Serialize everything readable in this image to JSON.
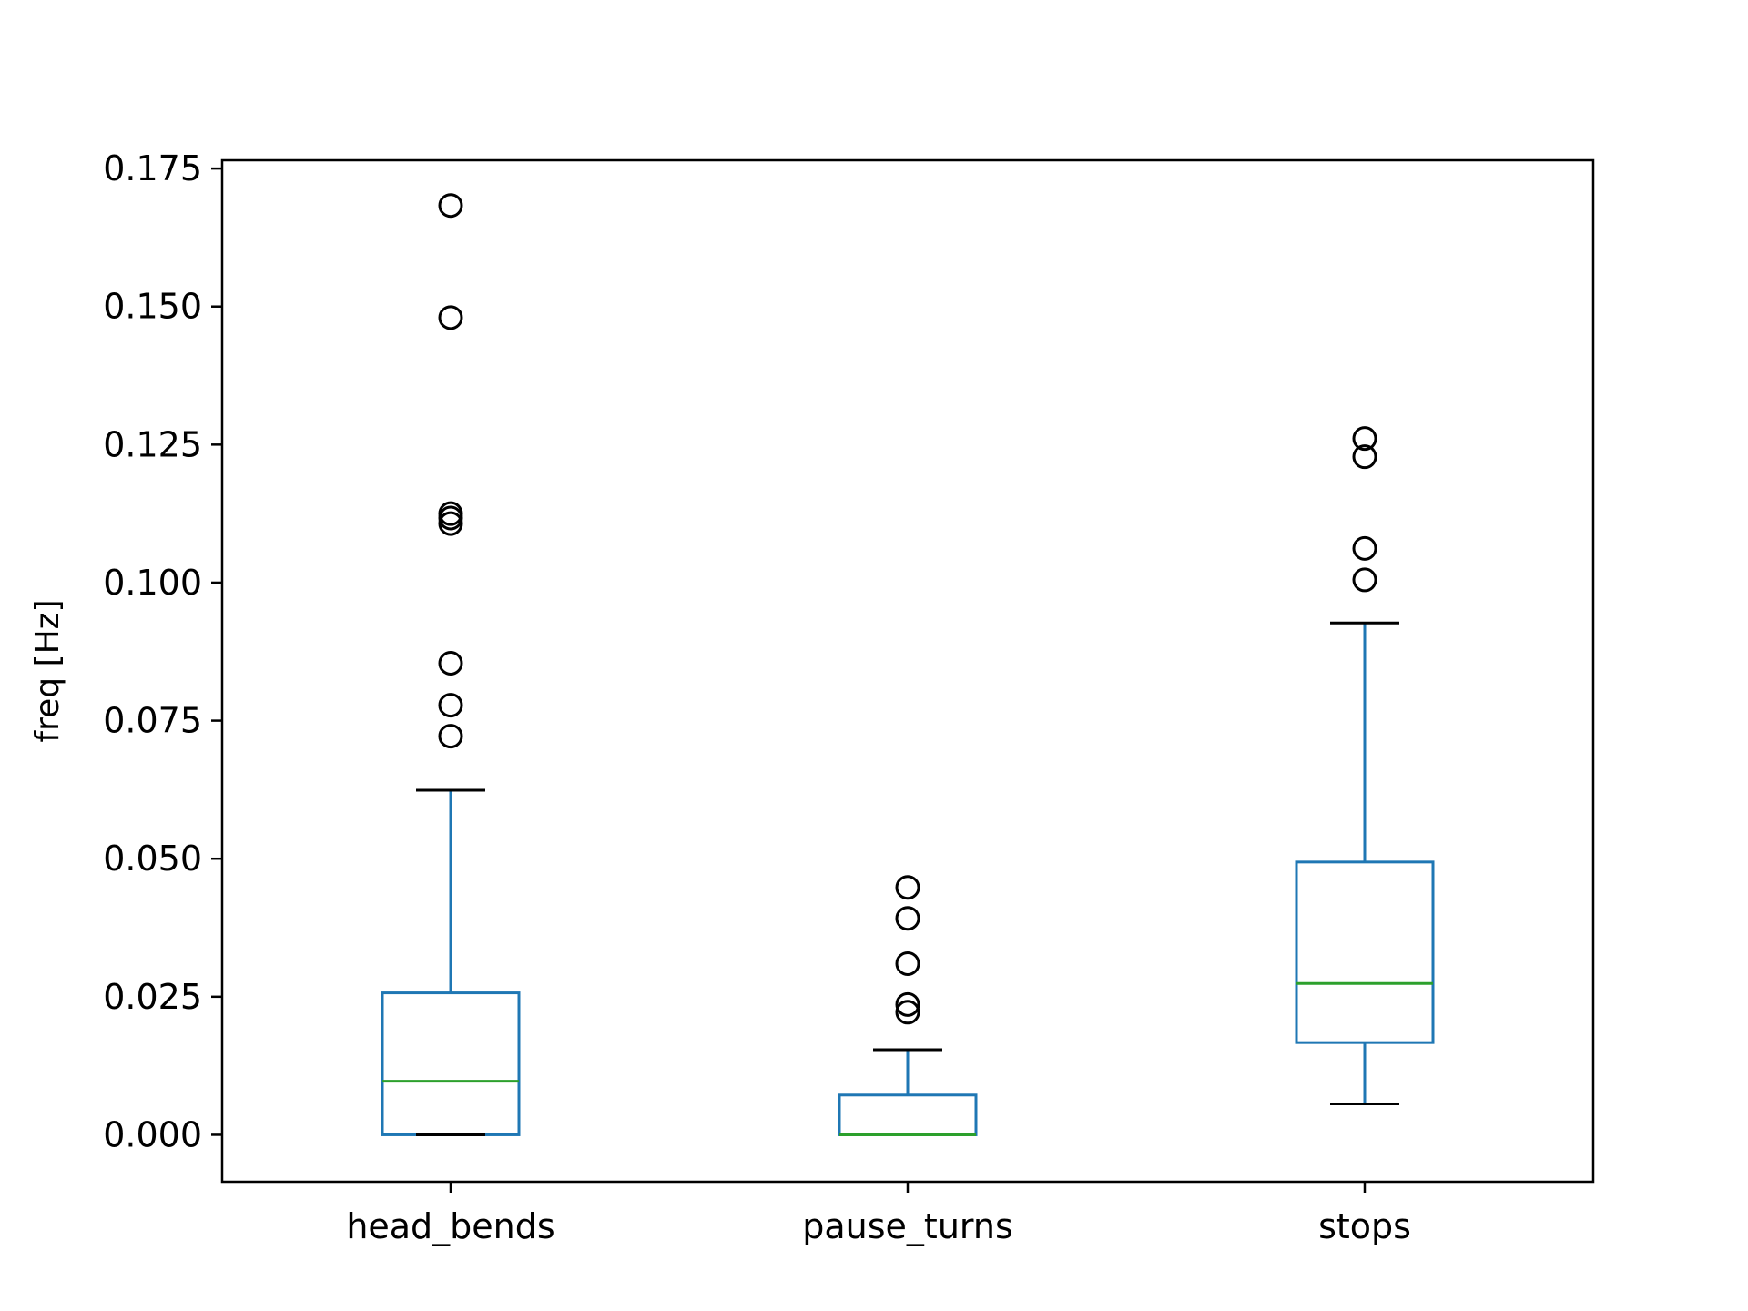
{
  "chart_data": {
    "type": "box",
    "title": "",
    "xlabel": "",
    "ylabel": "freq [Hz]",
    "ylim": [
      -0.0085,
      0.1765
    ],
    "yticks": [
      0.0,
      0.025,
      0.05,
      0.075,
      0.1,
      0.125,
      0.15,
      0.175
    ],
    "ytick_labels": [
      "0.000",
      "0.025",
      "0.050",
      "0.075",
      "0.100",
      "0.125",
      "0.150",
      "0.175"
    ],
    "grid": false,
    "legend": "none",
    "colors": {
      "box": "#1f77b4",
      "median": "#2ca02c",
      "cap": "#000000",
      "flier": "#000000"
    },
    "categories": [
      "head_bends",
      "pause_turns",
      "stops"
    ],
    "boxes": [
      {
        "category": "head_bends",
        "whislo": 0.0,
        "q1": 0.0,
        "median": 0.0097,
        "q3": 0.0257,
        "whishi": 0.0624,
        "fliers": [
          0.0722,
          0.0778,
          0.0854,
          0.1107,
          0.1117,
          0.1125,
          0.148,
          0.1683
        ]
      },
      {
        "category": "pause_turns",
        "whislo": 0.0,
        "q1": 0.0,
        "median": 0.0,
        "q3": 0.0072,
        "whishi": 0.0154,
        "fliers": [
          0.0222,
          0.0236,
          0.031,
          0.0392,
          0.0448
        ]
      },
      {
        "category": "stops",
        "whislo": 0.0056,
        "q1": 0.0167,
        "median": 0.0274,
        "q3": 0.0494,
        "whishi": 0.0927,
        "fliers": [
          0.1005,
          0.1062,
          0.1228,
          0.1261
        ]
      }
    ]
  }
}
